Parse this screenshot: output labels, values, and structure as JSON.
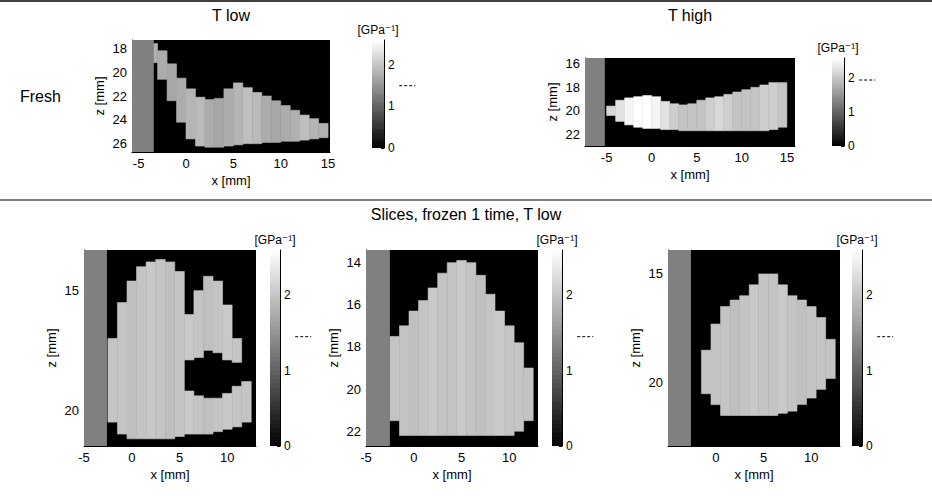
{
  "figure": {
    "column_titles": [
      "T low",
      "T high"
    ],
    "row_title": "Fresh",
    "section_title": "Slices, frozen 1 time, T low"
  },
  "chart_data": [
    {
      "type": "heatmap",
      "x_label": "x [mm]",
      "y_label": "z [mm]",
      "xlim": [
        -5.7,
        15.2
      ],
      "ylim": [
        26.7,
        17.3
      ],
      "xticks": [
        -5,
        0,
        5,
        10,
        15
      ],
      "yticks": [
        18,
        20,
        22,
        24,
        26
      ],
      "grid": false,
      "gray_band": [
        -5.7,
        -3.4
      ],
      "colorbar": {
        "label": "[GPa⁻¹]",
        "range": [
          0,
          2.6
        ],
        "ticks": [
          0,
          1,
          2
        ],
        "reference": 1.5
      },
      "cells": {
        "width": 1,
        "x": [
          -3.5,
          -2.5,
          -1.5,
          -0.5,
          0.5,
          1.5,
          2.5,
          3.5,
          4.5,
          5.5,
          6.5,
          7.5,
          8.5,
          9.5,
          10.5,
          11.5,
          12.5,
          13.5,
          14.5
        ],
        "values": [
          1.8,
          1.75,
          1.7,
          1.75,
          1.85,
          1.9,
          1.75,
          1.7,
          1.75,
          1.85,
          1.95,
          1.9,
          1.75,
          1.7,
          1.75,
          1.8,
          1.95,
          1.85,
          1.8
        ],
        "spans": [
          [
            [
              17.6,
              19.2
            ]
          ],
          [
            [
              18.2,
              20.6
            ]
          ],
          [
            [
              19.3,
              22.4
            ]
          ],
          [
            [
              20.5,
              24.2
            ]
          ],
          [
            [
              21.4,
              25.6
            ]
          ],
          [
            [
              22.1,
              26.2
            ]
          ],
          [
            [
              22.3,
              26.3
            ]
          ],
          [
            [
              22.2,
              26.3
            ]
          ],
          [
            [
              21.4,
              26.2
            ]
          ],
          [
            [
              20.9,
              26.1
            ]
          ],
          [
            [
              21.3,
              26.0
            ]
          ],
          [
            [
              21.7,
              26.0
            ]
          ],
          [
            [
              22.0,
              25.9
            ]
          ],
          [
            [
              22.4,
              25.9
            ]
          ],
          [
            [
              22.8,
              25.8
            ]
          ],
          [
            [
              23.2,
              25.8
            ]
          ],
          [
            [
              23.6,
              25.7
            ]
          ],
          [
            [
              23.9,
              25.6
            ]
          ],
          [
            [
              24.3,
              25.5
            ]
          ]
        ]
      }
    },
    {
      "type": "heatmap",
      "x_label": "x [mm]",
      "y_label": "z [mm]",
      "xlim": [
        -7.4,
        15.9
      ],
      "ylim": [
        23,
        15.5
      ],
      "xticks": [
        -5,
        0,
        5,
        10,
        15
      ],
      "yticks": [
        16,
        18,
        20,
        22
      ],
      "grid": false,
      "gray_band": [
        -7.4,
        -5.2
      ],
      "colorbar": {
        "label": "[GPa⁻¹]",
        "range": [
          0,
          2.6
        ],
        "ticks": [
          0,
          1,
          2
        ],
        "reference": 1.95
      },
      "cells": {
        "width": 1,
        "x": [
          -4.5,
          -3.5,
          -2.5,
          -1.5,
          -0.5,
          0.5,
          1.5,
          2.5,
          3.5,
          4.5,
          5.5,
          6.5,
          7.5,
          8.5,
          9.5,
          10.5,
          11.5,
          12.5,
          13.5,
          14.5
        ],
        "values": [
          2.2,
          2.3,
          2.5,
          2.6,
          2.6,
          2.5,
          2.3,
          2.1,
          2.0,
          2.0,
          2.0,
          2.1,
          2.2,
          2.1,
          2.0,
          2.0,
          2.0,
          2.1,
          2.1,
          2.0
        ],
        "spans": [
          [
            [
              19.6,
              20.4
            ]
          ],
          [
            [
              19.1,
              20.9
            ]
          ],
          [
            [
              18.9,
              21.2
            ]
          ],
          [
            [
              18.8,
              21.4
            ]
          ],
          [
            [
              18.7,
              21.5
            ]
          ],
          [
            [
              18.8,
              21.5
            ]
          ],
          [
            [
              19.2,
              21.6
            ]
          ],
          [
            [
              19.4,
              21.6
            ]
          ],
          [
            [
              19.5,
              21.7
            ]
          ],
          [
            [
              19.4,
              21.7
            ]
          ],
          [
            [
              19.1,
              21.7
            ]
          ],
          [
            [
              18.9,
              21.7
            ]
          ],
          [
            [
              18.8,
              21.7
            ]
          ],
          [
            [
              18.6,
              21.7
            ]
          ],
          [
            [
              18.4,
              21.7
            ]
          ],
          [
            [
              18.2,
              21.7
            ]
          ],
          [
            [
              18.0,
              21.7
            ]
          ],
          [
            [
              17.8,
              21.7
            ]
          ],
          [
            [
              17.6,
              21.6
            ]
          ],
          [
            [
              17.6,
              21.4
            ]
          ]
        ]
      }
    },
    {
      "type": "heatmap",
      "x_label": "x [mm]",
      "y_label": "z [mm]",
      "xlim": [
        -5,
        13
      ],
      "ylim": [
        21.5,
        13.3
      ],
      "xticks": [
        -5,
        0,
        5,
        10
      ],
      "yticks": [
        15,
        20
      ],
      "grid": false,
      "gray_band": [
        -5,
        -2.6
      ],
      "colorbar": {
        "label": "[GPa⁻¹]",
        "range": [
          0,
          2.6
        ],
        "ticks": [
          0,
          1,
          2
        ],
        "reference": 1.45
      },
      "cells": {
        "width": 1,
        "x": [
          -2,
          -1,
          0,
          1,
          2,
          3,
          4,
          5,
          6,
          7,
          8,
          9,
          10,
          11,
          12
        ],
        "values": [
          2.0,
          2.0,
          1.95,
          2.0,
          2.05,
          2.0,
          1.95,
          2.0,
          2.05,
          2.0,
          1.95,
          2.0,
          2.05,
          2.0,
          2.0
        ],
        "spans": [
          [
            [
              17.0,
              20.5
            ]
          ],
          [
            [
              15.5,
              21.0
            ]
          ],
          [
            [
              14.6,
              21.2
            ]
          ],
          [
            [
              14.0,
              21.2
            ]
          ],
          [
            [
              13.8,
              21.2
            ]
          ],
          [
            [
              13.7,
              21.2
            ]
          ],
          [
            [
              13.8,
              21.2
            ]
          ],
          [
            [
              14.2,
              21.1
            ]
          ],
          [
            [
              16.0,
              17.9
            ],
            [
              19.2,
              21.0
            ]
          ],
          [
            [
              15.0,
              17.8
            ],
            [
              19.4,
              21.0
            ]
          ],
          [
            [
              14.4,
              17.5
            ],
            [
              19.5,
              21.0
            ]
          ],
          [
            [
              14.6,
              17.6
            ],
            [
              19.5,
              20.9
            ]
          ],
          [
            [
              15.6,
              17.9
            ],
            [
              19.3,
              20.8
            ]
          ],
          [
            [
              17.0,
              18.0
            ],
            [
              19.0,
              20.7
            ]
          ],
          [
            [
              18.8,
              20.5
            ]
          ]
        ]
      }
    },
    {
      "type": "heatmap",
      "x_label": "x [mm]",
      "y_label": "z [mm]",
      "xlim": [
        -5,
        13
      ],
      "ylim": [
        22.7,
        13.4
      ],
      "xticks": [
        -5,
        0,
        5,
        10
      ],
      "yticks": [
        14,
        16,
        18,
        20,
        22
      ],
      "grid": false,
      "gray_band": [
        -5,
        -2.5
      ],
      "colorbar": {
        "label": "[GPa⁻¹]",
        "range": [
          0,
          2.6
        ],
        "ticks": [
          0,
          1,
          2
        ],
        "reference": 1.45
      },
      "cells": {
        "width": 1,
        "x": [
          -2,
          -1,
          0,
          1,
          2,
          3,
          4,
          5,
          6,
          7,
          8,
          9,
          10,
          11,
          12
        ],
        "values": [
          2.0,
          2.0,
          1.95,
          2.0,
          2.05,
          2.0,
          2.0,
          2.05,
          2.0,
          1.95,
          2.0,
          2.05,
          2.0,
          2.0,
          2.0
        ],
        "spans": [
          [
            [
              17.5,
              21.5
            ]
          ],
          [
            [
              17.0,
              22.2
            ]
          ],
          [
            [
              16.3,
              22.2
            ]
          ],
          [
            [
              15.8,
              22.2
            ]
          ],
          [
            [
              15.2,
              22.2
            ]
          ],
          [
            [
              14.5,
              22.2
            ]
          ],
          [
            [
              14.0,
              22.2
            ]
          ],
          [
            [
              13.9,
              22.2
            ]
          ],
          [
            [
              14.0,
              22.2
            ]
          ],
          [
            [
              14.6,
              22.2
            ]
          ],
          [
            [
              15.5,
              22.2
            ]
          ],
          [
            [
              16.3,
              22.2
            ]
          ],
          [
            [
              17.0,
              22.2
            ]
          ],
          [
            [
              17.8,
              22.0
            ]
          ],
          [
            [
              19.0,
              21.5
            ]
          ]
        ]
      }
    },
    {
      "type": "heatmap",
      "x_label": "x [mm]",
      "y_label": "z [mm]",
      "xlim": [
        -5,
        13
      ],
      "ylim": [
        22.9,
        13.9
      ],
      "xticks": [
        0,
        5,
        10
      ],
      "yticks": [
        15,
        20
      ],
      "grid": false,
      "gray_band": [
        -5,
        -2.6
      ],
      "colorbar": {
        "label": "[GPa⁻¹]",
        "range": [
          0,
          2.6
        ],
        "ticks": [
          0,
          1,
          2
        ],
        "reference": 1.45
      },
      "cells": {
        "width": 1,
        "x": [
          -1,
          0,
          1,
          2,
          3,
          4,
          5,
          6,
          7,
          8,
          9,
          10,
          11,
          12
        ],
        "values": [
          2.0,
          2.0,
          2.0,
          1.95,
          2.0,
          2.05,
          2.0,
          2.0,
          2.05,
          2.0,
          1.95,
          2.0,
          2.0,
          2.0
        ],
        "spans": [
          [
            [
              18.5,
              20.5
            ]
          ],
          [
            [
              17.3,
              21.0
            ]
          ],
          [
            [
              16.5,
              21.5
            ]
          ],
          [
            [
              16.2,
              21.5
            ]
          ],
          [
            [
              16.0,
              21.5
            ]
          ],
          [
            [
              15.5,
              21.5
            ]
          ],
          [
            [
              15.0,
              21.5
            ]
          ],
          [
            [
              15.0,
              21.5
            ]
          ],
          [
            [
              15.5,
              21.4
            ]
          ],
          [
            [
              16.0,
              21.3
            ]
          ],
          [
            [
              16.2,
              21.0
            ]
          ],
          [
            [
              16.5,
              20.7
            ]
          ],
          [
            [
              17.0,
              20.3
            ]
          ],
          [
            [
              18.0,
              19.8
            ]
          ]
        ]
      }
    }
  ]
}
